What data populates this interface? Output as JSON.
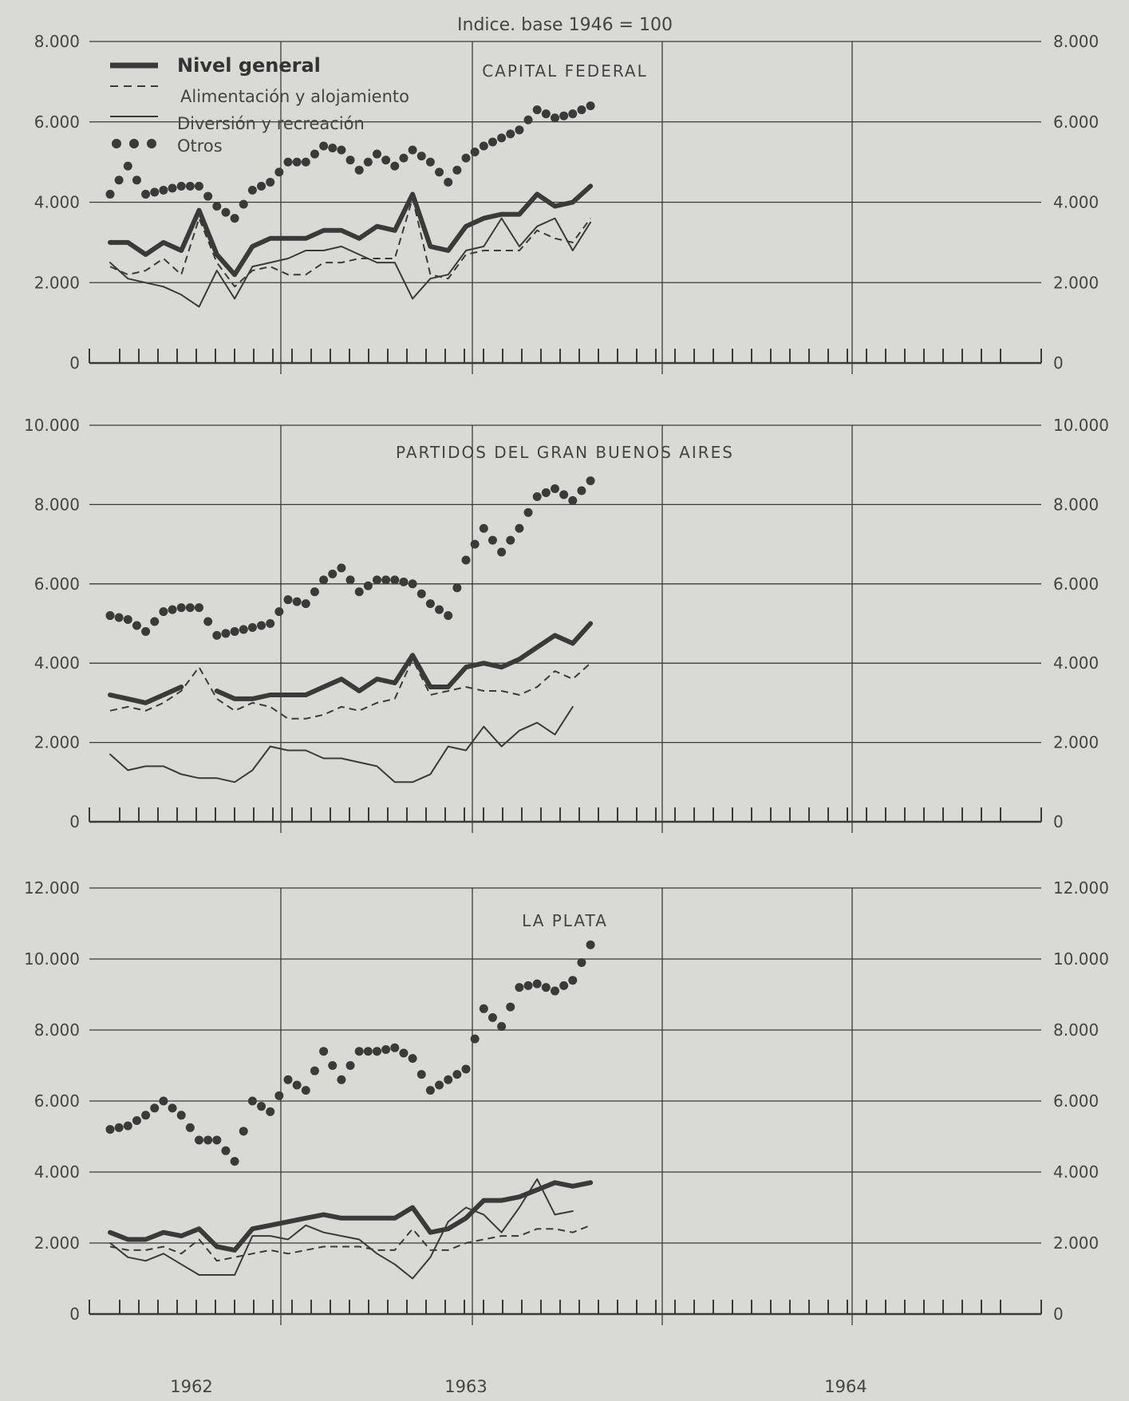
{
  "chart_data": {
    "type": "line",
    "title": "Indice. base 1946 = 100",
    "years": [
      "1962",
      "1963",
      "1964"
    ],
    "legend": [
      "Nivel general",
      "Alimentación y alojamiento",
      "Diversión y recreación",
      "Otros"
    ],
    "panels": [
      {
        "title": "CAPITAL FEDERAL",
        "ylim": [
          0,
          8000
        ],
        "ytick_labels": [
          "0",
          "2.000",
          "4.000",
          "6.000",
          "8.000"
        ],
        "ytick_values": [
          0,
          2000,
          4000,
          6000,
          8000
        ],
        "series": [
          {
            "name": "Nivel general",
            "x": [
              0,
              1,
              2,
              3,
              4,
              5,
              6,
              7,
              8,
              9,
              10,
              11,
              12,
              13,
              14,
              15,
              16,
              17,
              18,
              19,
              20,
              21,
              22,
              23,
              24,
              25,
              26,
              27,
              28,
              29,
              30,
              31,
              32
            ],
            "values": [
              3000,
              3000,
              2700,
              3000,
              2800,
              3800,
              2700,
              2200,
              2900,
              3100,
              3100,
              3100,
              3300,
              3300,
              3100,
              3400,
              3300,
              4200,
              2900,
              2800,
              3400,
              3600,
              3700,
              3700,
              4200,
              3900,
              4000,
              4400,
              null,
              null,
              null,
              null,
              null
            ]
          },
          {
            "name": "Alimentación y alojamiento",
            "x": [
              0,
              1,
              2,
              3,
              4,
              5,
              6,
              7,
              8,
              9,
              10,
              11,
              12,
              13,
              14,
              15,
              16,
              17,
              18,
              19,
              20,
              21,
              22,
              23,
              24,
              25,
              26,
              27
            ],
            "values": [
              2400,
              2200,
              2300,
              2600,
              2200,
              3600,
              2500,
              1900,
              2300,
              2400,
              2200,
              2200,
              2500,
              2500,
              2600,
              2600,
              2600,
              4100,
              2200,
              2100,
              2700,
              2800,
              2800,
              2800,
              3300,
              3100,
              3000,
              3600
            ]
          },
          {
            "name": "Diversión y recreación",
            "x": [
              0,
              1,
              2,
              3,
              4,
              5,
              6,
              7,
              8,
              9,
              10,
              11,
              12,
              13,
              14,
              15,
              16,
              17,
              18,
              19,
              20,
              21,
              22,
              23,
              24,
              25,
              26,
              27
            ],
            "values": [
              2500,
              2100,
              2000,
              1900,
              1700,
              1400,
              2300,
              1600,
              2400,
              2500,
              2600,
              2800,
              2800,
              2900,
              2700,
              2500,
              2500,
              1600,
              2100,
              2200,
              2800,
              2900,
              3600,
              2900,
              3400,
              3600,
              2800,
              3500
            ]
          },
          {
            "name": "Otros",
            "x": [
              0,
              1,
              2,
              3,
              4,
              5,
              6,
              7,
              8,
              9,
              10,
              11,
              12,
              13,
              14,
              15,
              16,
              17,
              18,
              19,
              20,
              21,
              22,
              23,
              24,
              25,
              26,
              27
            ],
            "values": [
              4200,
              4900,
              4200,
              4300,
              4400,
              4400,
              3900,
              3600,
              4300,
              4500,
              5000,
              5000,
              5400,
              5300,
              4800,
              5200,
              4900,
              5300,
              5000,
              4500,
              5100,
              5400,
              5600,
              5800,
              6300,
              6100,
              6200,
              6400
            ]
          }
        ]
      },
      {
        "title": "PARTIDOS DEL GRAN BUENOS AIRES",
        "ylim": [
          0,
          10000
        ],
        "ytick_labels": [
          "0",
          "2.000",
          "4.000",
          "6.000",
          "8.000",
          "10.000"
        ],
        "ytick_values": [
          0,
          2000,
          4000,
          6000,
          8000,
          10000
        ],
        "series": [
          {
            "name": "Nivel general",
            "x": [
              0,
              1,
              2,
              3,
              4,
              5,
              6,
              7,
              8,
              9,
              10,
              11,
              12,
              13,
              14,
              15,
              16,
              17,
              18,
              19,
              20,
              21,
              22,
              23,
              24,
              25,
              26,
              27
            ],
            "values": [
              3200,
              3100,
              3000,
              3200,
              3400,
              null,
              3300,
              3100,
              3100,
              3200,
              3200,
              3200,
              3400,
              3600,
              3300,
              3600,
              3500,
              4200,
              3400,
              3400,
              3900,
              4000,
              3900,
              4100,
              4400,
              4700,
              4500,
              5000
            ]
          },
          {
            "name": "Alimentación y alojamiento",
            "x": [
              0,
              1,
              2,
              3,
              4,
              5,
              6,
              7,
              8,
              9,
              10,
              11,
              12,
              13,
              14,
              15,
              16,
              17,
              18,
              19,
              20,
              21,
              22,
              23,
              24,
              25,
              26,
              27
            ],
            "values": [
              2800,
              2900,
              2800,
              3000,
              3300,
              3900,
              3100,
              2800,
              3000,
              2900,
              2600,
              2600,
              2700,
              2900,
              2800,
              3000,
              3100,
              4100,
              3200,
              3300,
              3400,
              3300,
              3300,
              3200,
              3400,
              3800,
              3600,
              4000
            ]
          },
          {
            "name": "Diversión y recreación",
            "x": [
              0,
              1,
              2,
              3,
              4,
              5,
              6,
              7,
              8,
              9,
              10,
              11,
              12,
              13,
              14,
              15,
              16,
              17,
              18,
              19,
              20,
              21,
              22,
              23,
              24,
              25,
              26,
              27
            ],
            "values": [
              1700,
              1300,
              1400,
              1400,
              1200,
              1100,
              1100,
              1000,
              1300,
              1900,
              1800,
              1800,
              1600,
              1600,
              1500,
              1400,
              1000,
              1000,
              1200,
              1900,
              1800,
              2400,
              1900,
              2300,
              2500,
              2200,
              2900,
              null
            ]
          },
          {
            "name": "Otros",
            "x": [
              0,
              1,
              2,
              3,
              4,
              5,
              6,
              7,
              8,
              9,
              10,
              11,
              12,
              13,
              14,
              15,
              16,
              17,
              18,
              19,
              20,
              21,
              22,
              23,
              24,
              25,
              26,
              27
            ],
            "values": [
              5200,
              5100,
              4800,
              5300,
              5400,
              5400,
              4700,
              4800,
              4900,
              5000,
              5600,
              5500,
              6100,
              6400,
              5800,
              6100,
              6100,
              6000,
              5500,
              5200,
              6600,
              7400,
              6800,
              7400,
              8200,
              8400,
              8100,
              8600
            ]
          }
        ]
      },
      {
        "title": "LA PLATA",
        "ylim": [
          0,
          12000
        ],
        "ytick_labels": [
          "0",
          "2.000",
          "4.000",
          "6.000",
          "8.000",
          "10.000",
          "12.000"
        ],
        "ytick_values": [
          0,
          2000,
          4000,
          6000,
          8000,
          10000,
          12000
        ],
        "series": [
          {
            "name": "Nivel general",
            "x": [
              0,
              1,
              2,
              3,
              4,
              5,
              6,
              7,
              8,
              9,
              10,
              11,
              12,
              13,
              14,
              15,
              16,
              17,
              18,
              19,
              20,
              21,
              22,
              23,
              24,
              25,
              26,
              27
            ],
            "values": [
              2300,
              2100,
              2100,
              2300,
              2200,
              2400,
              1900,
              1800,
              2400,
              2500,
              2600,
              2700,
              2800,
              2700,
              2700,
              2700,
              2700,
              3000,
              2300,
              2400,
              2700,
              3200,
              3200,
              3300,
              3500,
              3700,
              3600,
              3700
            ]
          },
          {
            "name": "Alimentación y alojamiento",
            "x": [
              0,
              1,
              2,
              3,
              4,
              5,
              6,
              7,
              8,
              9,
              10,
              11,
              12,
              13,
              14,
              15,
              16,
              17,
              18,
              19,
              20,
              21,
              22,
              23,
              24,
              25,
              26,
              27
            ],
            "values": [
              1900,
              1800,
              1800,
              1900,
              1700,
              2100,
              1500,
              1600,
              1700,
              1800,
              1700,
              1800,
              1900,
              1900,
              1900,
              1800,
              1800,
              2400,
              1800,
              1800,
              2000,
              2100,
              2200,
              2200,
              2400,
              2400,
              2300,
              2500
            ]
          },
          {
            "name": "Diversión y recreación",
            "x": [
              0,
              1,
              2,
              3,
              4,
              5,
              6,
              7,
              8,
              9,
              10,
              11,
              12,
              13,
              14,
              15,
              16,
              17,
              18,
              19,
              20,
              21,
              22,
              23,
              24,
              25,
              26,
              27
            ],
            "values": [
              2000,
              1600,
              1500,
              1700,
              1400,
              1100,
              1100,
              1100,
              2200,
              2200,
              2100,
              2500,
              2300,
              2200,
              2100,
              1700,
              1400,
              1000,
              1600,
              2600,
              3000,
              2800,
              2300,
              3000,
              3800,
              2800,
              2900,
              null
            ]
          },
          {
            "name": "Otros",
            "x": [
              0,
              1,
              2,
              3,
              4,
              5,
              6,
              7,
              8,
              9,
              10,
              11,
              12,
              13,
              14,
              15,
              16,
              17,
              18,
              19,
              20,
              21,
              22,
              23,
              24,
              25,
              26,
              27
            ],
            "values": [
              5200,
              5300,
              5600,
              6000,
              5600,
              4900,
              4900,
              4300,
              6000,
              5700,
              6600,
              6300,
              7400,
              6600,
              7400,
              7400,
              7500,
              7200,
              6300,
              6600,
              6900,
              8600,
              8100,
              9200,
              9300,
              9100,
              9400,
              10400
            ]
          }
        ]
      }
    ]
  }
}
